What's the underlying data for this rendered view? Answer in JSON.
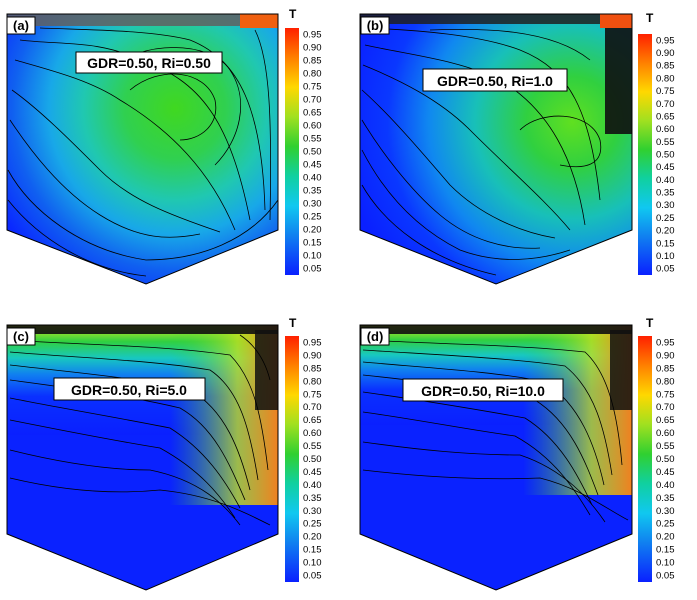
{
  "colorbar": {
    "title": "T",
    "ticks": [
      "0.95",
      "0.90",
      "0.85",
      "0.80",
      "0.75",
      "0.70",
      "0.65",
      "0.60",
      "0.55",
      "0.50",
      "0.45",
      "0.40",
      "0.35",
      "0.30",
      "0.25",
      "0.20",
      "0.15",
      "0.10",
      "0.05"
    ]
  },
  "panels": [
    {
      "tag": "(a)",
      "label": "GDR=0.50, Ri=0.50"
    },
    {
      "tag": "(b)",
      "label": "GDR=0.50, Ri=1.0"
    },
    {
      "tag": "(c)",
      "label": "GDR=0.50, Ri=5.0"
    },
    {
      "tag": "(d)",
      "label": "GDR=0.50, Ri=10.0"
    }
  ]
}
